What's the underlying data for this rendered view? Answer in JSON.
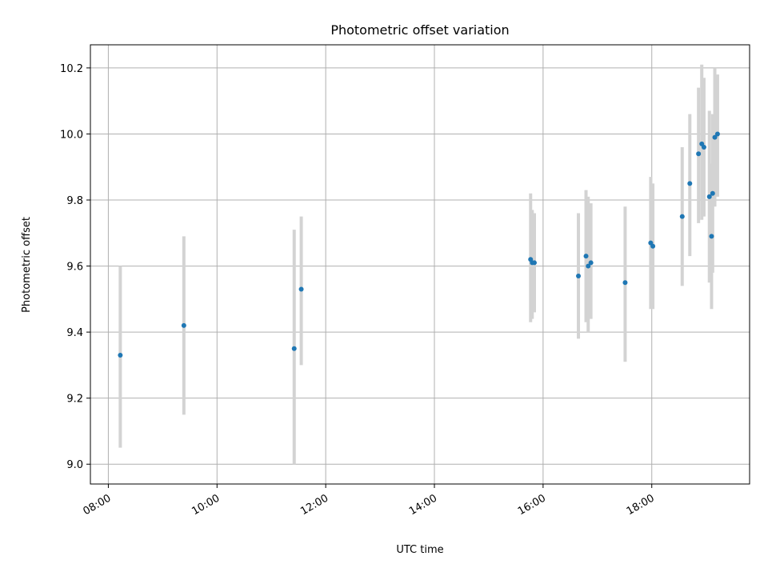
{
  "chart_data": {
    "type": "scatter",
    "title": "Photometric offset variation",
    "xlabel": "UTC time",
    "ylabel": "Photometric offset",
    "x_unit": "hours UTC",
    "xlim": [
      7.67,
      19.8
    ],
    "ylim": [
      8.94,
      10.27
    ],
    "x_ticks": [
      {
        "value": 8,
        "label": "08:00"
      },
      {
        "value": 10,
        "label": "10:00"
      },
      {
        "value": 12,
        "label": "12:00"
      },
      {
        "value": 14,
        "label": "14:00"
      },
      {
        "value": 16,
        "label": "16:00"
      },
      {
        "value": 18,
        "label": "18:00"
      }
    ],
    "y_ticks": [
      {
        "value": 9.0,
        "label": "9.0"
      },
      {
        "value": 9.2,
        "label": "9.2"
      },
      {
        "value": 9.4,
        "label": "9.4"
      },
      {
        "value": 9.6,
        "label": "9.6"
      },
      {
        "value": 9.8,
        "label": "9.8"
      },
      {
        "value": 10.0,
        "label": "10.0"
      },
      {
        "value": 10.2,
        "label": "10.2"
      }
    ],
    "grid": true,
    "point_color": "#1f77b4",
    "errorbar_color": "#d3d3d3",
    "points": [
      {
        "t": "08:13",
        "x": 8.22,
        "y": 9.33,
        "lo": 9.05,
        "hi": 9.6
      },
      {
        "t": "09:23",
        "x": 9.39,
        "y": 9.42,
        "lo": 9.15,
        "hi": 9.69
      },
      {
        "t": "11:25",
        "x": 11.42,
        "y": 9.35,
        "lo": 9.0,
        "hi": 9.71
      },
      {
        "t": "11:33",
        "x": 11.55,
        "y": 9.53,
        "lo": 9.3,
        "hi": 9.75
      },
      {
        "t": "15:46",
        "x": 15.77,
        "y": 9.62,
        "lo": 9.43,
        "hi": 9.82
      },
      {
        "t": "15:48",
        "x": 15.8,
        "y": 9.61,
        "lo": 9.44,
        "hi": 9.77
      },
      {
        "t": "15:50",
        "x": 15.84,
        "y": 9.61,
        "lo": 9.46,
        "hi": 9.76
      },
      {
        "t": "16:39",
        "x": 16.65,
        "y": 9.57,
        "lo": 9.38,
        "hi": 9.76
      },
      {
        "t": "16:47",
        "x": 16.79,
        "y": 9.63,
        "lo": 9.43,
        "hi": 9.83
      },
      {
        "t": "16:50",
        "x": 16.83,
        "y": 9.6,
        "lo": 9.4,
        "hi": 9.81
      },
      {
        "t": "16:53",
        "x": 16.88,
        "y": 9.61,
        "lo": 9.44,
        "hi": 9.79
      },
      {
        "t": "17:31",
        "x": 17.51,
        "y": 9.55,
        "lo": 9.31,
        "hi": 9.78
      },
      {
        "t": "17:59",
        "x": 17.98,
        "y": 9.67,
        "lo": 9.47,
        "hi": 9.87
      },
      {
        "t": "18:01",
        "x": 18.02,
        "y": 9.66,
        "lo": 9.47,
        "hi": 9.85
      },
      {
        "t": "18:34",
        "x": 18.56,
        "y": 9.75,
        "lo": 9.54,
        "hi": 9.96
      },
      {
        "t": "18:42",
        "x": 18.7,
        "y": 9.85,
        "lo": 9.63,
        "hi": 10.06
      },
      {
        "t": "18:52",
        "x": 18.86,
        "y": 9.94,
        "lo": 9.73,
        "hi": 10.14
      },
      {
        "t": "18:55",
        "x": 18.92,
        "y": 9.97,
        "lo": 9.74,
        "hi": 10.21
      },
      {
        "t": "18:58",
        "x": 18.96,
        "y": 9.96,
        "lo": 9.75,
        "hi": 10.17
      },
      {
        "t": "19:04",
        "x": 19.06,
        "y": 9.81,
        "lo": 9.55,
        "hi": 10.07
      },
      {
        "t": "19:06",
        "x": 19.1,
        "y": 9.69,
        "lo": 9.47,
        "hi": 9.91
      },
      {
        "t": "19:07",
        "x": 19.12,
        "y": 9.82,
        "lo": 9.58,
        "hi": 10.06
      },
      {
        "t": "19:10",
        "x": 19.16,
        "y": 9.99,
        "lo": 9.78,
        "hi": 10.2
      },
      {
        "t": "19:13",
        "x": 19.21,
        "y": 10.0,
        "lo": 9.81,
        "hi": 10.18
      }
    ]
  }
}
